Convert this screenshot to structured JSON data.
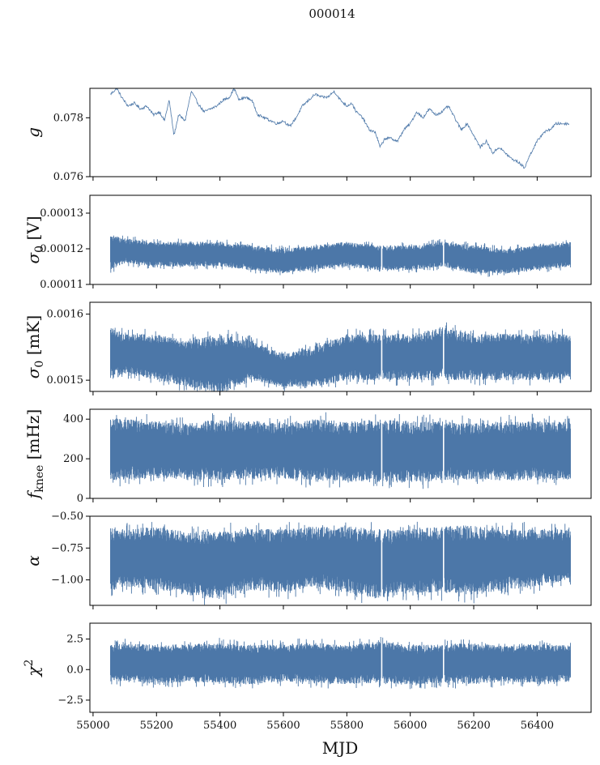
{
  "figure": {
    "title": "000014",
    "xlabel": "MJD",
    "line_color": "#4c77a8",
    "x_ticks": [
      "55000",
      "55200",
      "55400",
      "55600",
      "55800",
      "56000",
      "56200",
      "56400"
    ]
  },
  "chart_data": [
    {
      "type": "line",
      "ylabel": "g",
      "xlim": [
        54990,
        56570
      ],
      "ylim": [
        0.076,
        0.079
      ],
      "yticks": [
        0.076,
        0.078
      ],
      "ytick_labels": [
        "0.076",
        "0.078"
      ],
      "gaps": [],
      "series": [
        {
          "name": "g",
          "band": false,
          "x": [
            55055,
            55075,
            55090,
            55110,
            55130,
            55150,
            55170,
            55190,
            55210,
            55225,
            55240,
            55255,
            55270,
            55290,
            55310,
            55330,
            55350,
            55370,
            55390,
            55410,
            55430,
            55445,
            55460,
            55480,
            55500,
            55520,
            55540,
            55560,
            55580,
            55600,
            55620,
            55640,
            55660,
            55680,
            55700,
            55720,
            55740,
            55760,
            55780,
            55800,
            55815,
            55830,
            55850,
            55870,
            55890,
            55905,
            55920,
            55940,
            55960,
            55980,
            56000,
            56020,
            56040,
            56060,
            56080,
            56100,
            56120,
            56140,
            56160,
            56180,
            56200,
            56220,
            56240,
            56260,
            56280,
            56300,
            56320,
            56340,
            56360,
            56380,
            56400,
            56420,
            56440,
            56460,
            56480,
            56500
          ],
          "y": [
            0.0788,
            0.079,
            0.0787,
            0.0784,
            0.0785,
            0.0783,
            0.0784,
            0.0781,
            0.0782,
            0.0779,
            0.0786,
            0.0774,
            0.0781,
            0.0779,
            0.0789,
            0.0785,
            0.0782,
            0.0783,
            0.0784,
            0.0786,
            0.0787,
            0.079,
            0.0786,
            0.0787,
            0.0786,
            0.0781,
            0.078,
            0.0779,
            0.0778,
            0.0779,
            0.0777,
            0.078,
            0.0784,
            0.0786,
            0.0788,
            0.0787,
            0.0787,
            0.0789,
            0.0786,
            0.0784,
            0.0785,
            0.0782,
            0.078,
            0.0776,
            0.0775,
            0.077,
            0.0773,
            0.0773,
            0.0772,
            0.0776,
            0.0778,
            0.0782,
            0.078,
            0.0783,
            0.0781,
            0.0782,
            0.0784,
            0.078,
            0.0776,
            0.0778,
            0.0774,
            0.077,
            0.0772,
            0.0768,
            0.077,
            0.0768,
            0.0766,
            0.0765,
            0.0763,
            0.0768,
            0.0772,
            0.0775,
            0.0776,
            0.0778,
            0.0778,
            0.0778
          ]
        }
      ]
    },
    {
      "type": "line",
      "ylabel": "σ0 [V]",
      "xlim": [
        54990,
        56570
      ],
      "ylim": [
        0.00011,
        0.000135
      ],
      "yticks": [
        0.00011,
        0.00012,
        0.00013
      ],
      "ytick_labels": [
        "0.00011",
        "0.00012",
        "0.00013"
      ],
      "gaps": [
        55910,
        56105
      ],
      "series": [
        {
          "name": "σ0 [V]",
          "band": true,
          "x": [
            55055,
            55100,
            55200,
            55300,
            55400,
            55500,
            55600,
            55700,
            55800,
            55900,
            56000,
            56100,
            56200,
            56300,
            56400,
            56505
          ],
          "upper": [
            0.000124,
            0.000123,
            0.000122,
            0.000122,
            0.000122,
            0.000121,
            0.00012,
            0.000121,
            0.000122,
            0.000121,
            0.000121,
            0.000122,
            0.000121,
            0.00012,
            0.000121,
            0.000122
          ],
          "lower": [
            0.000114,
            0.000116,
            0.000115,
            0.000115,
            0.000115,
            0.000114,
            0.000113,
            0.000114,
            0.000115,
            0.000114,
            0.000114,
            0.000115,
            0.000113,
            0.000113,
            0.000114,
            0.000115
          ]
        }
      ]
    },
    {
      "type": "line",
      "ylabel": "σ0 [mK]",
      "xlim": [
        54990,
        56570
      ],
      "ylim": [
        0.001483,
        0.001618
      ],
      "yticks": [
        0.0015,
        0.0016
      ],
      "ytick_labels": [
        "0.0015",
        "0.0016"
      ],
      "gaps": [
        55910,
        56105
      ],
      "series": [
        {
          "name": "σ0 [mK]",
          "band": true,
          "x": [
            55055,
            55100,
            55200,
            55300,
            55400,
            55500,
            55600,
            55700,
            55800,
            55900,
            56000,
            56100,
            56200,
            56300,
            56400,
            56505
          ],
          "upper": [
            0.00158,
            0.00157,
            0.00157,
            0.00156,
            0.00157,
            0.00156,
            0.00154,
            0.00155,
            0.00157,
            0.00157,
            0.00157,
            0.00158,
            0.00157,
            0.00157,
            0.00157,
            0.00157
          ],
          "lower": [
            0.0015,
            0.00151,
            0.0015,
            0.00149,
            0.00148,
            0.0015,
            0.00149,
            0.00149,
            0.0015,
            0.0015,
            0.0015,
            0.0015,
            0.0015,
            0.0015,
            0.0015,
            0.0015
          ]
        }
      ]
    },
    {
      "type": "line",
      "ylabel": "fknee [mHz]",
      "xlim": [
        54990,
        56570
      ],
      "ylim": [
        0,
        450
      ],
      "yticks": [
        0,
        200,
        400
      ],
      "ytick_labels": [
        "0",
        "200",
        "400"
      ],
      "gaps": [
        55910,
        56105
      ],
      "series": [
        {
          "name": "fknee [mHz]",
          "band": true,
          "x": [
            55055,
            55100,
            55200,
            55300,
            55400,
            55500,
            55600,
            55700,
            55800,
            55900,
            56000,
            56100,
            56200,
            56300,
            56400,
            56505
          ],
          "upper": [
            410,
            400,
            390,
            380,
            400,
            390,
            380,
            400,
            390,
            400,
            390,
            390,
            380,
            390,
            390,
            390
          ],
          "lower": [
            90,
            95,
            100,
            95,
            90,
            95,
            100,
            90,
            85,
            80,
            80,
            90,
            95,
            90,
            90,
            95
          ]
        }
      ]
    },
    {
      "type": "line",
      "ylabel": "α",
      "xlim": [
        54990,
        56570
      ],
      "ylim": [
        -1.2,
        -0.5
      ],
      "yticks": [
        -1.0,
        -0.75,
        -0.5
      ],
      "ytick_labels": [
        "−1.00",
        "−0.75",
        "−0.50"
      ],
      "gaps": [
        55910,
        56105
      ],
      "series": [
        {
          "name": "α",
          "band": true,
          "x": [
            55055,
            55100,
            55200,
            55300,
            55400,
            55500,
            55600,
            55700,
            55800,
            55900,
            56000,
            56100,
            56200,
            56300,
            56400,
            56505
          ],
          "upper": [
            -0.58,
            -0.6,
            -0.58,
            -0.62,
            -0.62,
            -0.6,
            -0.6,
            -0.58,
            -0.58,
            -0.6,
            -0.6,
            -0.58,
            -0.57,
            -0.6,
            -0.6,
            -0.6
          ],
          "lower": [
            -1.1,
            -1.05,
            -1.08,
            -1.12,
            -1.15,
            -1.08,
            -1.1,
            -1.05,
            -1.1,
            -1.15,
            -1.1,
            -1.1,
            -1.12,
            -1.08,
            -1.05,
            -1.0
          ]
        }
      ]
    },
    {
      "type": "line",
      "ylabel": "χ2",
      "xlim": [
        54990,
        56570
      ],
      "ylim": [
        -3.5,
        3.8
      ],
      "yticks": [
        -2.5,
        0.0,
        2.5
      ],
      "ytick_labels": [
        "−2.5",
        "0.0",
        "2.5"
      ],
      "gaps": [
        55910,
        56105
      ],
      "series": [
        {
          "name": "χ2",
          "band": true,
          "x": [
            55055,
            55100,
            55200,
            55300,
            55400,
            55500,
            55600,
            55700,
            55800,
            55900,
            56000,
            56100,
            56200,
            56300,
            56400,
            56505
          ],
          "upper": [
            2.0,
            2.2,
            2.0,
            2.1,
            2.2,
            2.0,
            2.1,
            2.2,
            2.0,
            2.3,
            2.0,
            2.1,
            2.2,
            2.0,
            2.1,
            2.0
          ],
          "lower": [
            -1.0,
            -1.1,
            -1.2,
            -1.0,
            -1.1,
            -1.2,
            -1.0,
            -1.1,
            -1.2,
            -1.1,
            -1.3,
            -1.1,
            -1.2,
            -1.0,
            -1.1,
            -1.0
          ]
        }
      ]
    }
  ]
}
